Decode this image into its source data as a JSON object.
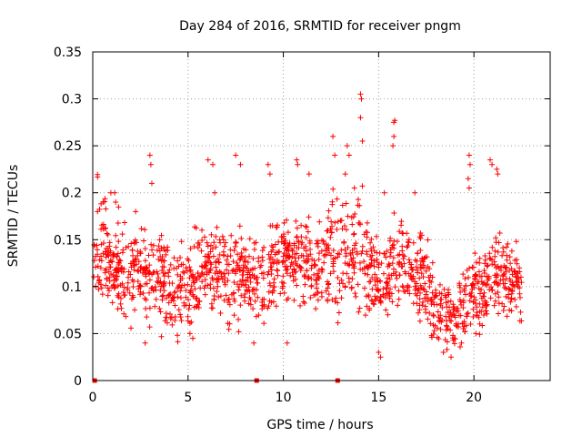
{
  "chart_data": {
    "type": "scatter",
    "title": "Day 284 of 2016, SRMTID for receiver pngm",
    "xlabel": "GPS time / hours",
    "ylabel": "SRMTID / TECUs",
    "xlim": [
      0,
      24
    ],
    "ylim": [
      0,
      0.35
    ],
    "x_ticks": [
      0,
      5,
      10,
      15,
      20
    ],
    "x_tick_labels": [
      "0",
      "5",
      "10",
      "15",
      "20"
    ],
    "y_ticks": [
      0,
      0.05,
      0.1,
      0.15,
      0.2,
      0.25,
      0.3,
      0.35
    ],
    "y_tick_labels": [
      "0",
      "0.05",
      "0.1",
      "0.15",
      "0.2",
      "0.25",
      "0.3",
      "0.35"
    ],
    "grid": true,
    "marker": "plus",
    "color": "#ff0000",
    "series": [
      {
        "name": "SRMTID",
        "profile_hours": [
          0,
          0.25,
          0.5,
          0.75,
          1,
          1.5,
          2,
          2.5,
          3,
          3.5,
          4,
          4.5,
          5,
          5.5,
          6,
          6.5,
          7,
          7.5,
          8,
          8.5,
          9,
          9.5,
          10,
          10.5,
          11,
          11.5,
          12,
          12.5,
          13,
          13.5,
          14,
          14.5,
          15,
          15.5,
          16,
          16.5,
          17,
          17.5,
          18,
          18.5,
          19,
          19.5,
          20,
          20.5,
          21,
          21.5,
          22,
          22.5
        ],
        "profile_mean": [
          0.13,
          0.15,
          0.14,
          0.13,
          0.12,
          0.12,
          0.12,
          0.12,
          0.11,
          0.11,
          0.1,
          0.1,
          0.1,
          0.11,
          0.12,
          0.12,
          0.11,
          0.11,
          0.11,
          0.1,
          0.1,
          0.12,
          0.13,
          0.13,
          0.13,
          0.13,
          0.12,
          0.14,
          0.13,
          0.13,
          0.13,
          0.12,
          0.1,
          0.11,
          0.12,
          0.12,
          0.11,
          0.1,
          0.08,
          0.07,
          0.07,
          0.08,
          0.1,
          0.1,
          0.11,
          0.11,
          0.11,
          0.1
        ],
        "profile_spread": [
          0.03,
          0.04,
          0.04,
          0.03,
          0.03,
          0.03,
          0.03,
          0.03,
          0.03,
          0.03,
          0.03,
          0.03,
          0.03,
          0.03,
          0.03,
          0.03,
          0.03,
          0.03,
          0.03,
          0.03,
          0.03,
          0.03,
          0.03,
          0.03,
          0.03,
          0.03,
          0.03,
          0.04,
          0.04,
          0.03,
          0.04,
          0.04,
          0.03,
          0.03,
          0.03,
          0.03,
          0.03,
          0.03,
          0.025,
          0.025,
          0.025,
          0.03,
          0.03,
          0.03,
          0.03,
          0.03,
          0.03,
          0.02
        ],
        "point_count": 1600,
        "outliers": [
          [
            0.25,
            0.18
          ],
          [
            0.55,
            0.19
          ],
          [
            0.95,
            0.2
          ],
          [
            1.15,
            0.2
          ],
          [
            1.2,
            0.19
          ],
          [
            2.25,
            0.18
          ],
          [
            3.0,
            0.24
          ],
          [
            3.05,
            0.23
          ],
          [
            3.1,
            0.21
          ],
          [
            2.75,
            0.04
          ],
          [
            5.1,
            0.05
          ],
          [
            5.25,
            0.045
          ],
          [
            6.05,
            0.235
          ],
          [
            6.3,
            0.23
          ],
          [
            6.4,
            0.2
          ],
          [
            7.5,
            0.24
          ],
          [
            7.75,
            0.23
          ],
          [
            8.45,
            0.04
          ],
          [
            9.2,
            0.23
          ],
          [
            9.3,
            0.22
          ],
          [
            10.2,
            0.04
          ],
          [
            10.7,
            0.235
          ],
          [
            10.75,
            0.23
          ],
          [
            11.35,
            0.22
          ],
          [
            12.6,
            0.26
          ],
          [
            12.7,
            0.24
          ],
          [
            13.25,
            0.22
          ],
          [
            13.35,
            0.25
          ],
          [
            13.45,
            0.24
          ],
          [
            14.05,
            0.305
          ],
          [
            14.1,
            0.3
          ],
          [
            14.05,
            0.28
          ],
          [
            14.15,
            0.255
          ],
          [
            15.0,
            0.03
          ],
          [
            15.1,
            0.025
          ],
          [
            15.3,
            0.2
          ],
          [
            15.8,
            0.275
          ],
          [
            15.85,
            0.277
          ],
          [
            15.8,
            0.26
          ],
          [
            15.75,
            0.25
          ],
          [
            16.9,
            0.2
          ],
          [
            18.4,
            0.03
          ],
          [
            18.8,
            0.025
          ],
          [
            19.75,
            0.24
          ],
          [
            19.8,
            0.23
          ],
          [
            19.7,
            0.215
          ],
          [
            19.75,
            0.205
          ],
          [
            20.1,
            0.05
          ],
          [
            20.85,
            0.235
          ],
          [
            20.95,
            0.23
          ],
          [
            21.2,
            0.225
          ],
          [
            21.25,
            0.22
          ]
        ],
        "zero_markers": [
          0.1,
          8.6,
          12.85
        ]
      }
    ]
  }
}
